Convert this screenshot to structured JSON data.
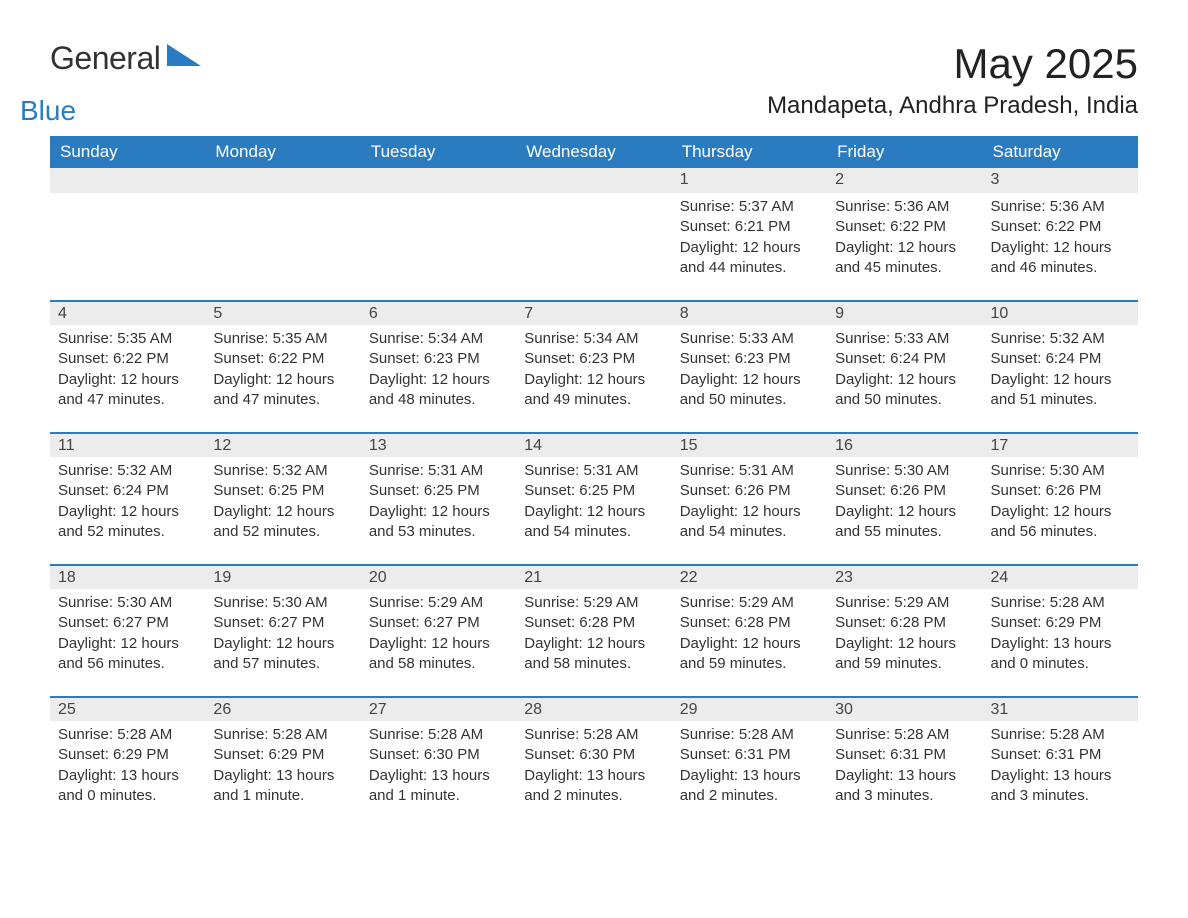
{
  "brand": {
    "name1": "General",
    "name2": "Blue"
  },
  "title": "May 2025",
  "location": "Mandapeta, Andhra Pradesh, India",
  "colors": {
    "header_bg": "#2a7bbf",
    "header_text": "#ffffff",
    "daynum_bg": "#ececec",
    "daynum_border": "#2a7bbf",
    "body_text": "#333333",
    "page_bg": "#ffffff"
  },
  "typography": {
    "title_fontsize": 42,
    "location_fontsize": 24,
    "header_fontsize": 17,
    "daynum_fontsize": 16,
    "body_fontsize": 15
  },
  "day_headers": [
    "Sunday",
    "Monday",
    "Tuesday",
    "Wednesday",
    "Thursday",
    "Friday",
    "Saturday"
  ],
  "weeks": [
    [
      {
        "num": "",
        "sunrise": "",
        "sunset": "",
        "daylight": ""
      },
      {
        "num": "",
        "sunrise": "",
        "sunset": "",
        "daylight": ""
      },
      {
        "num": "",
        "sunrise": "",
        "sunset": "",
        "daylight": ""
      },
      {
        "num": "",
        "sunrise": "",
        "sunset": "",
        "daylight": ""
      },
      {
        "num": "1",
        "sunrise": "Sunrise: 5:37 AM",
        "sunset": "Sunset: 6:21 PM",
        "daylight": "Daylight: 12 hours and 44 minutes."
      },
      {
        "num": "2",
        "sunrise": "Sunrise: 5:36 AM",
        "sunset": "Sunset: 6:22 PM",
        "daylight": "Daylight: 12 hours and 45 minutes."
      },
      {
        "num": "3",
        "sunrise": "Sunrise: 5:36 AM",
        "sunset": "Sunset: 6:22 PM",
        "daylight": "Daylight: 12 hours and 46 minutes."
      }
    ],
    [
      {
        "num": "4",
        "sunrise": "Sunrise: 5:35 AM",
        "sunset": "Sunset: 6:22 PM",
        "daylight": "Daylight: 12 hours and 47 minutes."
      },
      {
        "num": "5",
        "sunrise": "Sunrise: 5:35 AM",
        "sunset": "Sunset: 6:22 PM",
        "daylight": "Daylight: 12 hours and 47 minutes."
      },
      {
        "num": "6",
        "sunrise": "Sunrise: 5:34 AM",
        "sunset": "Sunset: 6:23 PM",
        "daylight": "Daylight: 12 hours and 48 minutes."
      },
      {
        "num": "7",
        "sunrise": "Sunrise: 5:34 AM",
        "sunset": "Sunset: 6:23 PM",
        "daylight": "Daylight: 12 hours and 49 minutes."
      },
      {
        "num": "8",
        "sunrise": "Sunrise: 5:33 AM",
        "sunset": "Sunset: 6:23 PM",
        "daylight": "Daylight: 12 hours and 50 minutes."
      },
      {
        "num": "9",
        "sunrise": "Sunrise: 5:33 AM",
        "sunset": "Sunset: 6:24 PM",
        "daylight": "Daylight: 12 hours and 50 minutes."
      },
      {
        "num": "10",
        "sunrise": "Sunrise: 5:32 AM",
        "sunset": "Sunset: 6:24 PM",
        "daylight": "Daylight: 12 hours and 51 minutes."
      }
    ],
    [
      {
        "num": "11",
        "sunrise": "Sunrise: 5:32 AM",
        "sunset": "Sunset: 6:24 PM",
        "daylight": "Daylight: 12 hours and 52 minutes."
      },
      {
        "num": "12",
        "sunrise": "Sunrise: 5:32 AM",
        "sunset": "Sunset: 6:25 PM",
        "daylight": "Daylight: 12 hours and 52 minutes."
      },
      {
        "num": "13",
        "sunrise": "Sunrise: 5:31 AM",
        "sunset": "Sunset: 6:25 PM",
        "daylight": "Daylight: 12 hours and 53 minutes."
      },
      {
        "num": "14",
        "sunrise": "Sunrise: 5:31 AM",
        "sunset": "Sunset: 6:25 PM",
        "daylight": "Daylight: 12 hours and 54 minutes."
      },
      {
        "num": "15",
        "sunrise": "Sunrise: 5:31 AM",
        "sunset": "Sunset: 6:26 PM",
        "daylight": "Daylight: 12 hours and 54 minutes."
      },
      {
        "num": "16",
        "sunrise": "Sunrise: 5:30 AM",
        "sunset": "Sunset: 6:26 PM",
        "daylight": "Daylight: 12 hours and 55 minutes."
      },
      {
        "num": "17",
        "sunrise": "Sunrise: 5:30 AM",
        "sunset": "Sunset: 6:26 PM",
        "daylight": "Daylight: 12 hours and 56 minutes."
      }
    ],
    [
      {
        "num": "18",
        "sunrise": "Sunrise: 5:30 AM",
        "sunset": "Sunset: 6:27 PM",
        "daylight": "Daylight: 12 hours and 56 minutes."
      },
      {
        "num": "19",
        "sunrise": "Sunrise: 5:30 AM",
        "sunset": "Sunset: 6:27 PM",
        "daylight": "Daylight: 12 hours and 57 minutes."
      },
      {
        "num": "20",
        "sunrise": "Sunrise: 5:29 AM",
        "sunset": "Sunset: 6:27 PM",
        "daylight": "Daylight: 12 hours and 58 minutes."
      },
      {
        "num": "21",
        "sunrise": "Sunrise: 5:29 AM",
        "sunset": "Sunset: 6:28 PM",
        "daylight": "Daylight: 12 hours and 58 minutes."
      },
      {
        "num": "22",
        "sunrise": "Sunrise: 5:29 AM",
        "sunset": "Sunset: 6:28 PM",
        "daylight": "Daylight: 12 hours and 59 minutes."
      },
      {
        "num": "23",
        "sunrise": "Sunrise: 5:29 AM",
        "sunset": "Sunset: 6:28 PM",
        "daylight": "Daylight: 12 hours and 59 minutes."
      },
      {
        "num": "24",
        "sunrise": "Sunrise: 5:28 AM",
        "sunset": "Sunset: 6:29 PM",
        "daylight": "Daylight: 13 hours and 0 minutes."
      }
    ],
    [
      {
        "num": "25",
        "sunrise": "Sunrise: 5:28 AM",
        "sunset": "Sunset: 6:29 PM",
        "daylight": "Daylight: 13 hours and 0 minutes."
      },
      {
        "num": "26",
        "sunrise": "Sunrise: 5:28 AM",
        "sunset": "Sunset: 6:29 PM",
        "daylight": "Daylight: 13 hours and 1 minute."
      },
      {
        "num": "27",
        "sunrise": "Sunrise: 5:28 AM",
        "sunset": "Sunset: 6:30 PM",
        "daylight": "Daylight: 13 hours and 1 minute."
      },
      {
        "num": "28",
        "sunrise": "Sunrise: 5:28 AM",
        "sunset": "Sunset: 6:30 PM",
        "daylight": "Daylight: 13 hours and 2 minutes."
      },
      {
        "num": "29",
        "sunrise": "Sunrise: 5:28 AM",
        "sunset": "Sunset: 6:31 PM",
        "daylight": "Daylight: 13 hours and 2 minutes."
      },
      {
        "num": "30",
        "sunrise": "Sunrise: 5:28 AM",
        "sunset": "Sunset: 6:31 PM",
        "daylight": "Daylight: 13 hours and 3 minutes."
      },
      {
        "num": "31",
        "sunrise": "Sunrise: 5:28 AM",
        "sunset": "Sunset: 6:31 PM",
        "daylight": "Daylight: 13 hours and 3 minutes."
      }
    ]
  ]
}
